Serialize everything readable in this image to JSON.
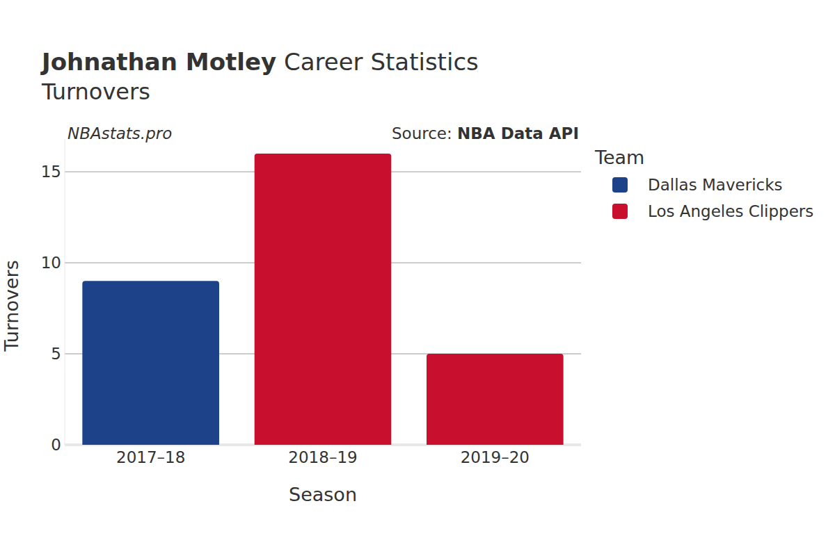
{
  "chart_data": {
    "type": "bar",
    "title": "Johnathan Motley Career Statistics",
    "subtitle": "Turnovers",
    "watermark": "NBAstats.pro",
    "source_label": "Source:",
    "source": "NBA Data API",
    "x_label": "Season",
    "y_label": "Turnovers",
    "legend_title": "Team",
    "legend": "right",
    "categories": [
      "2017–18",
      "2018–19",
      "2019–20"
    ],
    "series": [
      {
        "name": "Dallas Mavericks",
        "color": "#1d428a",
        "values": [
          9,
          null,
          null
        ]
      },
      {
        "name": "Los Angeles Clippers",
        "color": "#c8102e",
        "values": [
          null,
          16,
          5
        ]
      }
    ],
    "ylim": [
      0,
      16.8
    ],
    "yticks": [
      0,
      5,
      10,
      15
    ],
    "grid": true
  }
}
